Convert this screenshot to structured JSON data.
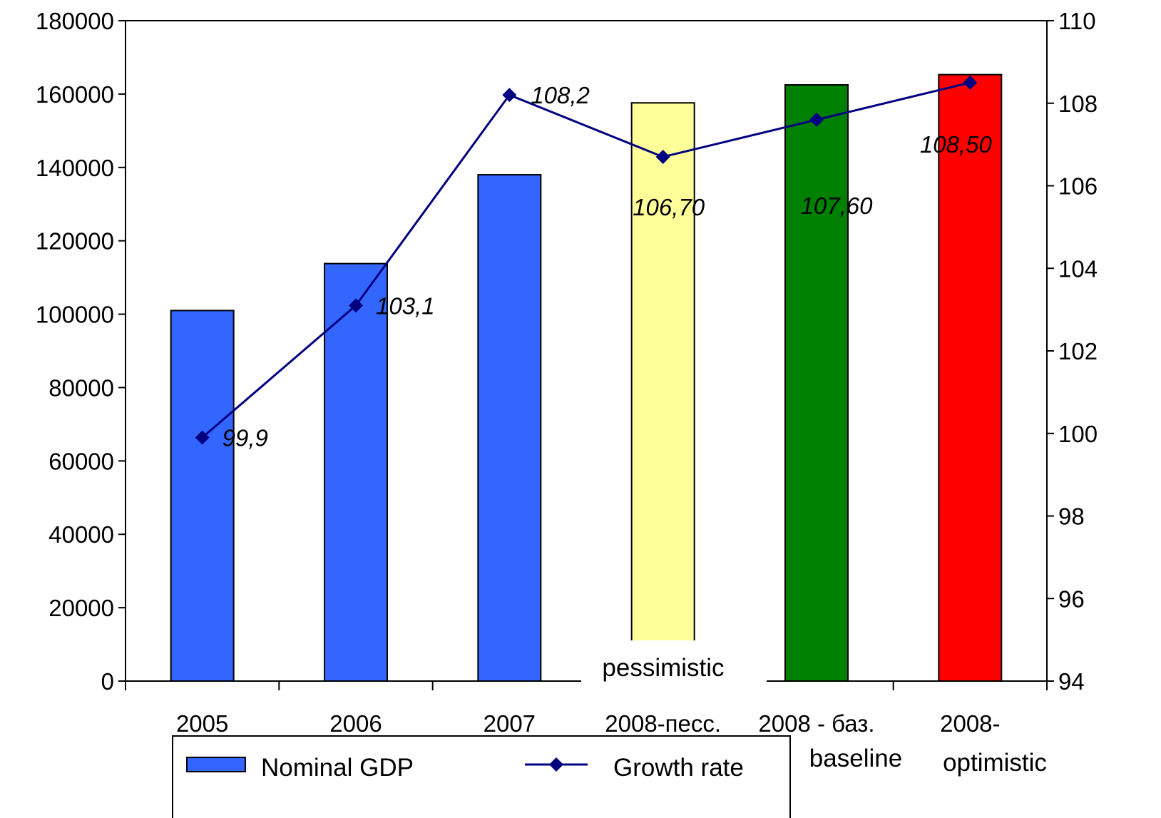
{
  "chart_data": {
    "type": "bar",
    "categories": [
      "2005",
      "2006",
      "2007",
      "2008-пecc.",
      "2008 - баз.",
      "2008-"
    ],
    "category_sublabels": [
      "",
      "",
      "",
      "pessimistic",
      "baseline",
      "optimistic"
    ],
    "series": [
      {
        "name": "Nominal GDP",
        "type": "bar",
        "axis": "left",
        "values": [
          101000,
          113800,
          138000,
          157600,
          162500,
          165300
        ],
        "colors": [
          "#3366ff",
          "#3366ff",
          "#3366ff",
          "#ffff99",
          "#008000",
          "#ff0000"
        ]
      },
      {
        "name": "Growth rate",
        "type": "line",
        "axis": "right",
        "values": [
          99.9,
          103.1,
          108.2,
          106.7,
          107.6,
          108.5
        ],
        "labels": [
          "99,9",
          "103,1",
          "108,2",
          "106,70",
          "107,60",
          "108,50"
        ],
        "color": "#000080"
      }
    ],
    "y_left": {
      "min": 0,
      "max": 180000,
      "ticks": [
        "0",
        "20000",
        "40000",
        "60000",
        "80000",
        "100000",
        "120000",
        "140000",
        "160000",
        "180000"
      ]
    },
    "y_right": {
      "min": 94,
      "max": 110,
      "ticks": [
        "94",
        "96",
        "98",
        "100",
        "102",
        "104",
        "106",
        "108",
        "110"
      ]
    },
    "legend": {
      "position": "bottom-left",
      "items": [
        {
          "label": "Nominal GDP",
          "kind": "bar",
          "color": "#3366ff"
        },
        {
          "label": "Growth rate",
          "kind": "line-marker",
          "color": "#000080"
        }
      ]
    },
    "grid": false
  }
}
